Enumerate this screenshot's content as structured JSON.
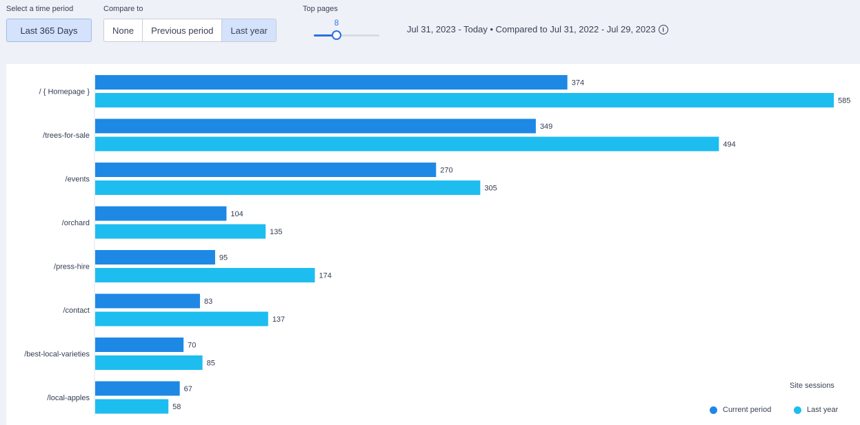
{
  "controls": {
    "time_label": "Select a time period",
    "time_value": "Last 365 Days",
    "compare_label": "Compare to",
    "compare_options": [
      "None",
      "Previous period",
      "Last year"
    ],
    "compare_selected": "Last year",
    "top_pages_label": "Top pages",
    "top_pages_value": 8,
    "top_pages_value_text": "8",
    "range_text": "Jul 31, 2023 - Today  •  Compared to Jul 31, 2022 - Jul 29, 2023"
  },
  "chart_data": {
    "type": "bar",
    "orientation": "horizontal",
    "categories": [
      "/ { Homepage }",
      "/trees-for-sale",
      "/events",
      "/orchard",
      "/press-hire",
      "/contact",
      "/best-local-varieties",
      "/local-apples"
    ],
    "series": [
      {
        "name": "Current period",
        "values": [
          374,
          349,
          270,
          104,
          95,
          83,
          70,
          67
        ],
        "color": "#1e88e5"
      },
      {
        "name": "Last year",
        "values": [
          585,
          494,
          305,
          135,
          174,
          137,
          85,
          58
        ],
        "color": "#1ebdf0"
      }
    ],
    "xlim": [
      0,
      585
    ],
    "grid": false,
    "legend_title": "Site sessions",
    "legend_position": "bottom-right",
    "colors": {
      "current": "#1e88e5",
      "previous": "#1ebdf0",
      "axis": "#e3e6ec"
    }
  }
}
